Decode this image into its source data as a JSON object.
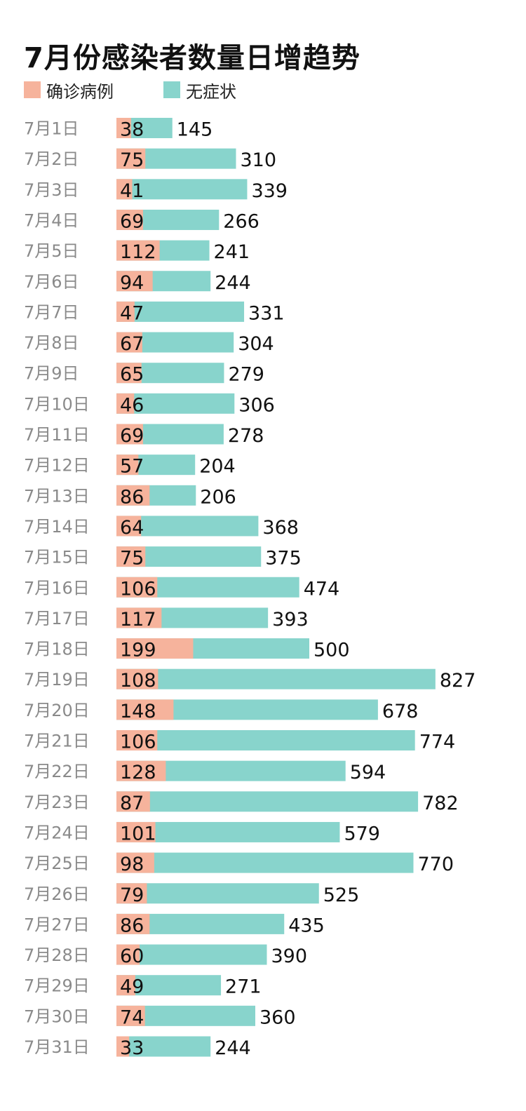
{
  "colors": {
    "confirmed": "#f6b39c",
    "asymptomatic": "#88d4cc"
  },
  "chart_data": {
    "type": "bar",
    "stacked": true,
    "orientation": "horizontal",
    "title": "7月份感染者数量日增趋势",
    "legend_position": "top-left",
    "grid": false,
    "categories": [
      "7月1日",
      "7月2日",
      "7月3日",
      "7月4日",
      "7月5日",
      "7月6日",
      "7月7日",
      "7月8日",
      "7月9日",
      "7月10日",
      "7月11日",
      "7月12日",
      "7月13日",
      "7月14日",
      "7月15日",
      "7月16日",
      "7月17日",
      "7月18日",
      "7月19日",
      "7月20日",
      "7月21日",
      "7月22日",
      "7月23日",
      "7月24日",
      "7月25日",
      "7月26日",
      "7月27日",
      "7月28日",
      "7月29日",
      "7月30日",
      "7月31日"
    ],
    "series": [
      {
        "name": "确诊病例",
        "values": [
          38,
          75,
          41,
          69,
          112,
          94,
          47,
          67,
          65,
          46,
          69,
          57,
          86,
          64,
          75,
          106,
          117,
          199,
          108,
          148,
          106,
          128,
          87,
          101,
          98,
          79,
          86,
          60,
          49,
          74,
          33
        ]
      },
      {
        "name": "无症状",
        "values": [
          145,
          310,
          339,
          266,
          241,
          244,
          331,
          304,
          279,
          306,
          278,
          204,
          206,
          368,
          375,
          474,
          393,
          500,
          827,
          678,
          774,
          594,
          782,
          579,
          770,
          525,
          435,
          390,
          271,
          360,
          244
        ]
      }
    ]
  }
}
